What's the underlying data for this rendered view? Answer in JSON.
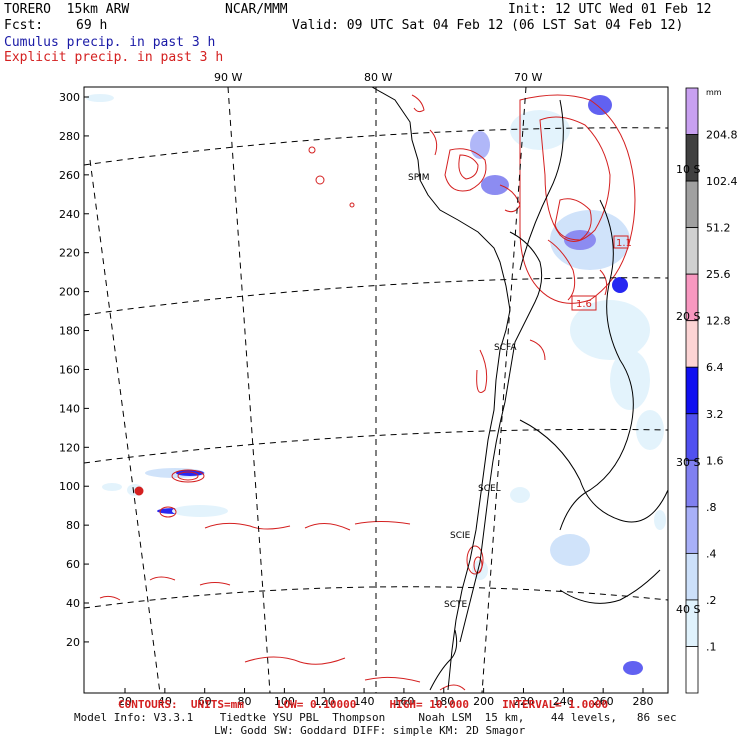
{
  "header": {
    "model": "TORERO  15km ARW",
    "org": "NCAR/MMM",
    "init": "Init: 12 UTC Wed 01 Feb 12",
    "fcst_label": "Fcst:",
    "fcst_hours": "69 h",
    "valid": "Valid: 09 UTC Sat 04 Feb 12 (06 LST Sat 04 Feb 12)",
    "field1": "Cumulus precip. in past 3 h",
    "field2": "Explicit precip. in past 3 h"
  },
  "map": {
    "lon_labels": [
      "90 W",
      "80 W",
      "70 W"
    ],
    "lat_labels": [
      "10 S",
      "20 S",
      "30 S",
      "40 S"
    ],
    "y_ticks": [
      "300",
      "280",
      "260",
      "240",
      "220",
      "200",
      "180",
      "160",
      "140",
      "120",
      "100",
      "80",
      "60",
      "40",
      "20"
    ],
    "x_ticks": [
      "20",
      "40",
      "60",
      "80",
      "100",
      "120",
      "140",
      "160",
      "180",
      "200",
      "220",
      "240",
      "260",
      "280"
    ],
    "stations": [
      "SPIM",
      "SCFA",
      "SCEL",
      "SCIE",
      "SCTE"
    ],
    "contour_labels": [
      "1.1",
      "1.6"
    ]
  },
  "colorbar": {
    "unit": "mm",
    "levels": [
      "204.8",
      "102.4",
      "51.2",
      "25.6",
      "12.8",
      "6.4",
      "3.2",
      "1.6",
      ".8",
      ".4",
      ".2",
      ".1"
    ],
    "colors": [
      "#c8a0f0",
      "#404040",
      "#a0a0a0",
      "#d0d0d0",
      "#f898c0",
      "#fcd4d4",
      "#1010f0",
      "#5050f0",
      "#8080f0",
      "#a8b0f8",
      "#cce0fa",
      "#e0f2fc",
      "#ffffff"
    ]
  },
  "footer": {
    "contours": "CONTOURS:  UNITS=mm     LOW= 0.10000     HIGH= 10.000     INTERVAL= 1.0000",
    "line1": "Model Info: V3.3.1    Tiedtke YSU PBL  Thompson     Noah LSM  15 km,    44 levels,   86 sec",
    "line2": "LW: Godd SW: Goddard DIFF: simple KM: 2D Smagor"
  }
}
